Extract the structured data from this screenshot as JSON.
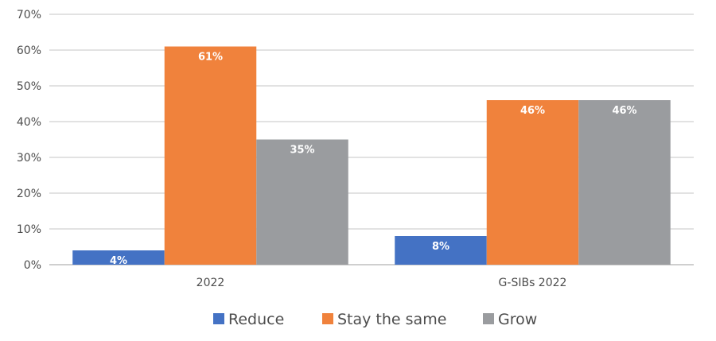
{
  "chart_data": {
    "type": "bar",
    "title": "",
    "xlabel": "",
    "ylabel": "",
    "categories": [
      "2022",
      "G-SIBs 2022"
    ],
    "series": [
      {
        "name": "Reduce",
        "values": [
          4,
          8
        ],
        "labels": [
          "4%",
          "8%"
        ],
        "color": "#4472c4"
      },
      {
        "name": "Stay the same",
        "values": [
          61,
          46
        ],
        "labels": [
          "61%",
          "46%"
        ],
        "color": "#f0823c"
      },
      {
        "name": "Grow",
        "values": [
          35,
          46
        ],
        "labels": [
          "35%",
          "46%"
        ],
        "color": "#9a9c9f"
      }
    ],
    "ylim": [
      0,
      70
    ],
    "yticks": [
      0,
      10,
      20,
      30,
      40,
      50,
      60,
      70
    ],
    "ytick_labels": [
      "0%",
      "10%",
      "20%",
      "30%",
      "40%",
      "50%",
      "60%",
      "70%"
    ],
    "grid": true,
    "gridline_color": "#d9d9d9",
    "legend": {
      "position": "bottom",
      "entries": [
        "Reduce",
        "Stay the same",
        "Grow"
      ]
    }
  }
}
